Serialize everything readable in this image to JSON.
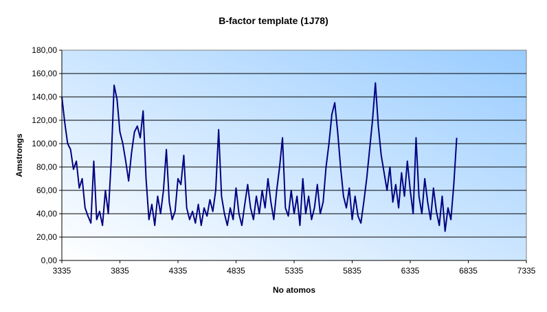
{
  "chart_data": {
    "type": "line",
    "title": "B-factor template (1J78)",
    "xlabel": "No atomos",
    "ylabel": "Amstrongs",
    "xlim": [
      3335,
      7335
    ],
    "ylim": [
      0,
      180
    ],
    "grid": "horizontal",
    "legend": "none",
    "x_ticks": [
      "3335",
      "3835",
      "4335",
      "4835",
      "5335",
      "5835",
      "6335",
      "6835",
      "7335"
    ],
    "y_ticks": [
      "0,00",
      "20,00",
      "40,00",
      "60,00",
      "80,00",
      "100,00",
      "120,00",
      "140,00",
      "160,00",
      "180,00"
    ],
    "series": [
      {
        "name": "B-factor",
        "color": "#000080",
        "x_start": 3335,
        "x_step": 25,
        "values": [
          140,
          118,
          100,
          95,
          78,
          85,
          62,
          70,
          45,
          38,
          32,
          85,
          35,
          42,
          30,
          60,
          40,
          85,
          150,
          138,
          110,
          100,
          85,
          68,
          92,
          110,
          115,
          105,
          128,
          70,
          35,
          48,
          30,
          55,
          40,
          60,
          95,
          50,
          35,
          42,
          70,
          65,
          90,
          45,
          35,
          42,
          32,
          48,
          30,
          45,
          38,
          52,
          42,
          60,
          112,
          55,
          40,
          30,
          45,
          35,
          62,
          40,
          30,
          48,
          65,
          45,
          35,
          55,
          40,
          60,
          45,
          70,
          50,
          35,
          60,
          80,
          105,
          45,
          38,
          60,
          40,
          55,
          30,
          70,
          40,
          55,
          35,
          45,
          65,
          40,
          50,
          80,
          100,
          125,
          135,
          110,
          80,
          55,
          45,
          62,
          35,
          55,
          38,
          32,
          50,
          70,
          95,
          120,
          152,
          115,
          90,
          75,
          60,
          80,
          50,
          65,
          45,
          75,
          55,
          85,
          60,
          40,
          105,
          55,
          40,
          70,
          50,
          35,
          62,
          42,
          30,
          55,
          25,
          45,
          35,
          65,
          105
        ]
      }
    ]
  }
}
